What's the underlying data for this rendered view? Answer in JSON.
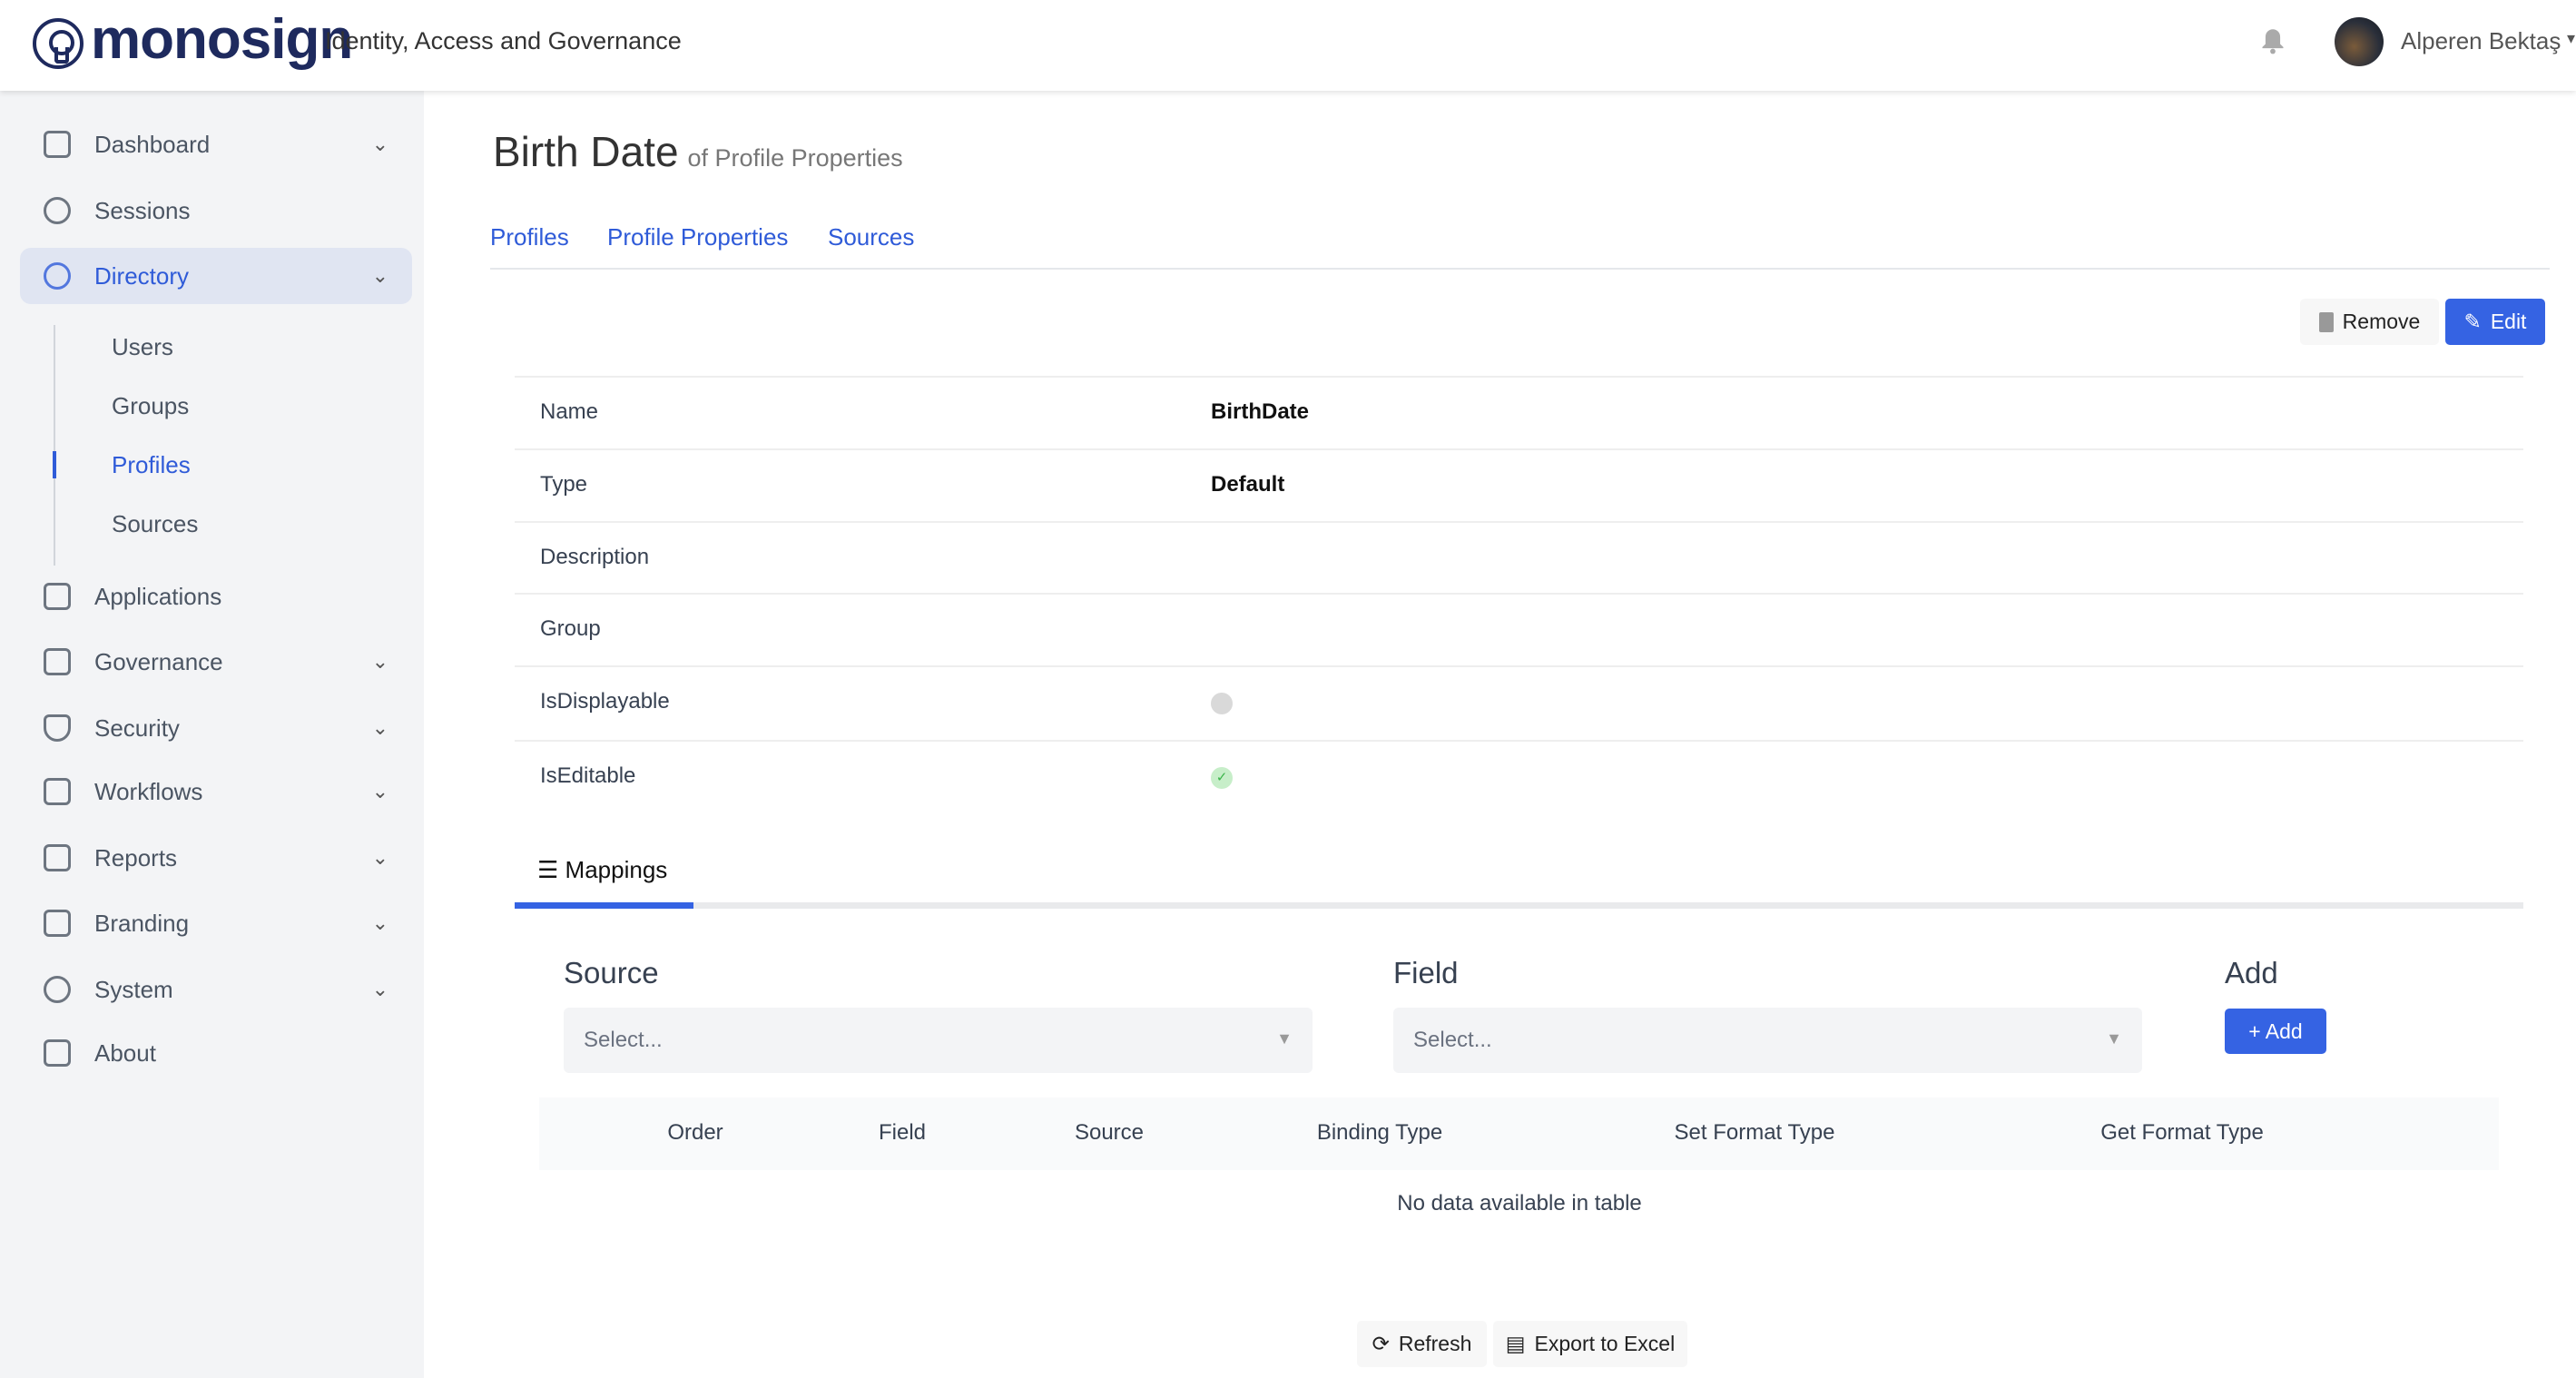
{
  "header": {
    "brand": "monosign",
    "tagline": "Identity, Access and Governance",
    "user_name": "Alperen Bektaş"
  },
  "sidebar": {
    "items": [
      {
        "label": "Dashboard",
        "icon": "dashboard-icon",
        "expandable": true
      },
      {
        "label": "Sessions",
        "icon": "stopwatch-icon",
        "expandable": false
      },
      {
        "label": "Directory",
        "icon": "users-icon",
        "expandable": true,
        "active": true
      },
      {
        "label": "Applications",
        "icon": "apps-grid-icon",
        "expandable": false
      },
      {
        "label": "Governance",
        "icon": "lock-icon",
        "expandable": true
      },
      {
        "label": "Security",
        "icon": "shield-icon",
        "expandable": true
      },
      {
        "label": "Workflows",
        "icon": "workflow-icon",
        "expandable": true
      },
      {
        "label": "Reports",
        "icon": "monitor-chart-icon",
        "expandable": true
      },
      {
        "label": "Branding",
        "icon": "sliders-icon",
        "expandable": true
      },
      {
        "label": "System",
        "icon": "gear-icon",
        "expandable": true
      },
      {
        "label": "About",
        "icon": "chat-icon",
        "expandable": false
      }
    ],
    "directory_sub": [
      {
        "label": "Users"
      },
      {
        "label": "Groups"
      },
      {
        "label": "Profiles",
        "active": true
      },
      {
        "label": "Sources"
      }
    ]
  },
  "page": {
    "title": "Birth Date",
    "subtitle": "of Profile Properties",
    "tabs": [
      {
        "label": "Profiles"
      },
      {
        "label": "Profile Properties"
      },
      {
        "label": "Sources"
      }
    ],
    "remove_label": "Remove",
    "edit_label": "Edit",
    "details": [
      {
        "label": "Name",
        "value": "BirthDate"
      },
      {
        "label": "Type",
        "value": "Default"
      },
      {
        "label": "Description",
        "value": ""
      },
      {
        "label": "Group",
        "value": ""
      },
      {
        "label": "IsDisplayable",
        "value": false
      },
      {
        "label": "IsEditable",
        "value": true
      }
    ]
  },
  "mappings": {
    "tab_label": "Mappings",
    "source_label": "Source",
    "source_placeholder": "Select...",
    "field_label": "Field",
    "field_placeholder": "Select...",
    "add_label": "Add",
    "add_button": "+ Add",
    "columns": [
      "Order",
      "Field",
      "Source",
      "Binding Type",
      "Set Format Type",
      "Get Format Type"
    ],
    "empty_text": "No data available in table",
    "refresh_label": "Refresh",
    "export_label": "Export to Excel"
  },
  "colors": {
    "accent": "#3563e3",
    "brand": "#1e2a5e",
    "sidebar_bg": "#f3f4f6"
  }
}
